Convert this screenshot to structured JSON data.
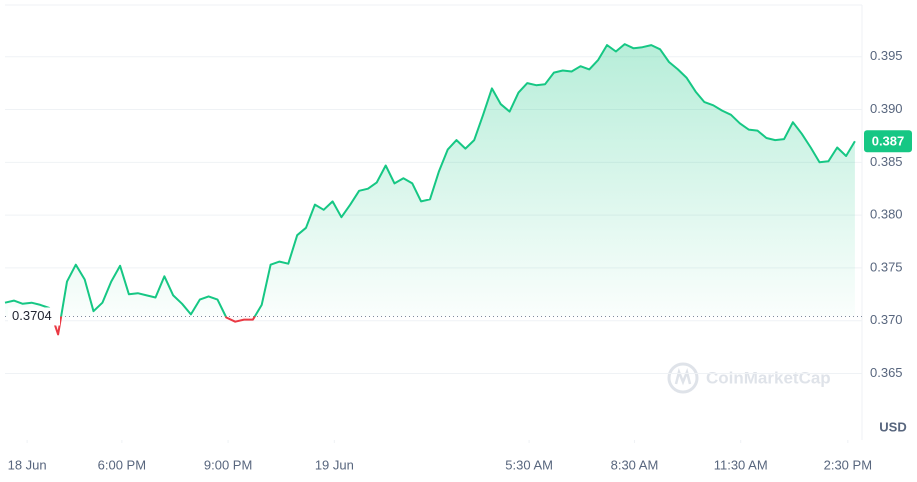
{
  "chart_data": {
    "type": "line",
    "values": [
      0.3717,
      0.3719,
      0.3716,
      0.3717,
      0.3715,
      0.3712,
      0.3687,
      0.3737,
      0.3753,
      0.3739,
      0.3709,
      0.3717,
      0.3737,
      0.3752,
      0.3725,
      0.3726,
      0.3724,
      0.3722,
      0.3742,
      0.3724,
      0.3716,
      0.3706,
      0.372,
      0.3723,
      0.372,
      0.3703,
      0.3699,
      0.3701,
      0.3701,
      0.3715,
      0.3753,
      0.3756,
      0.3754,
      0.3781,
      0.3788,
      0.381,
      0.3805,
      0.3813,
      0.3798,
      0.381,
      0.3823,
      0.3825,
      0.3831,
      0.3847,
      0.383,
      0.3835,
      0.383,
      0.3813,
      0.3815,
      0.3841,
      0.3862,
      0.3871,
      0.3863,
      0.3871,
      0.3895,
      0.392,
      0.3905,
      0.3898,
      0.3916,
      0.3925,
      0.3923,
      0.3924,
      0.3935,
      0.3937,
      0.3936,
      0.3941,
      0.3938,
      0.3947,
      0.3961,
      0.3955,
      0.3962,
      0.3958,
      0.3959,
      0.3961,
      0.3957,
      0.3945,
      0.3938,
      0.393,
      0.3917,
      0.3907,
      0.3904,
      0.3899,
      0.3895,
      0.3887,
      0.3881,
      0.388,
      0.3873,
      0.3871,
      0.3872,
      0.3888,
      0.3877,
      0.3864,
      0.385,
      0.3851,
      0.3864,
      0.3856,
      0.387
    ],
    "xlim": [
      0,
      96.8
    ],
    "xticks": [
      {
        "value": 2.5,
        "label": "18 Jun"
      },
      {
        "value": 13.2,
        "label": "6:00 PM"
      },
      {
        "value": 25.2,
        "label": "9:00 PM"
      },
      {
        "value": 37.2,
        "label": "19 Jun"
      },
      {
        "value": 59.2,
        "label": "5:30 AM"
      },
      {
        "value": 71.1,
        "label": "8:30 AM"
      },
      {
        "value": 83.1,
        "label": "11:30 AM"
      },
      {
        "value": 95.2,
        "label": "2:30 PM"
      }
    ],
    "ylim": [
      0.3587,
      0.3999
    ],
    "yticks": [
      0.365,
      {
        "value": 0.37,
        "label": "0.370"
      },
      0.375,
      {
        "value": 0.38,
        "label": "0.380"
      },
      0.385,
      {
        "value": 0.39,
        "label": "0.390"
      },
      0.395
    ],
    "baseline": 0.3704,
    "last_price": 0.387,
    "unit": "USD",
    "watermark": "CoinMarketCap",
    "up_color": "#16c784",
    "down_color": "#ea3943",
    "grid": true
  }
}
